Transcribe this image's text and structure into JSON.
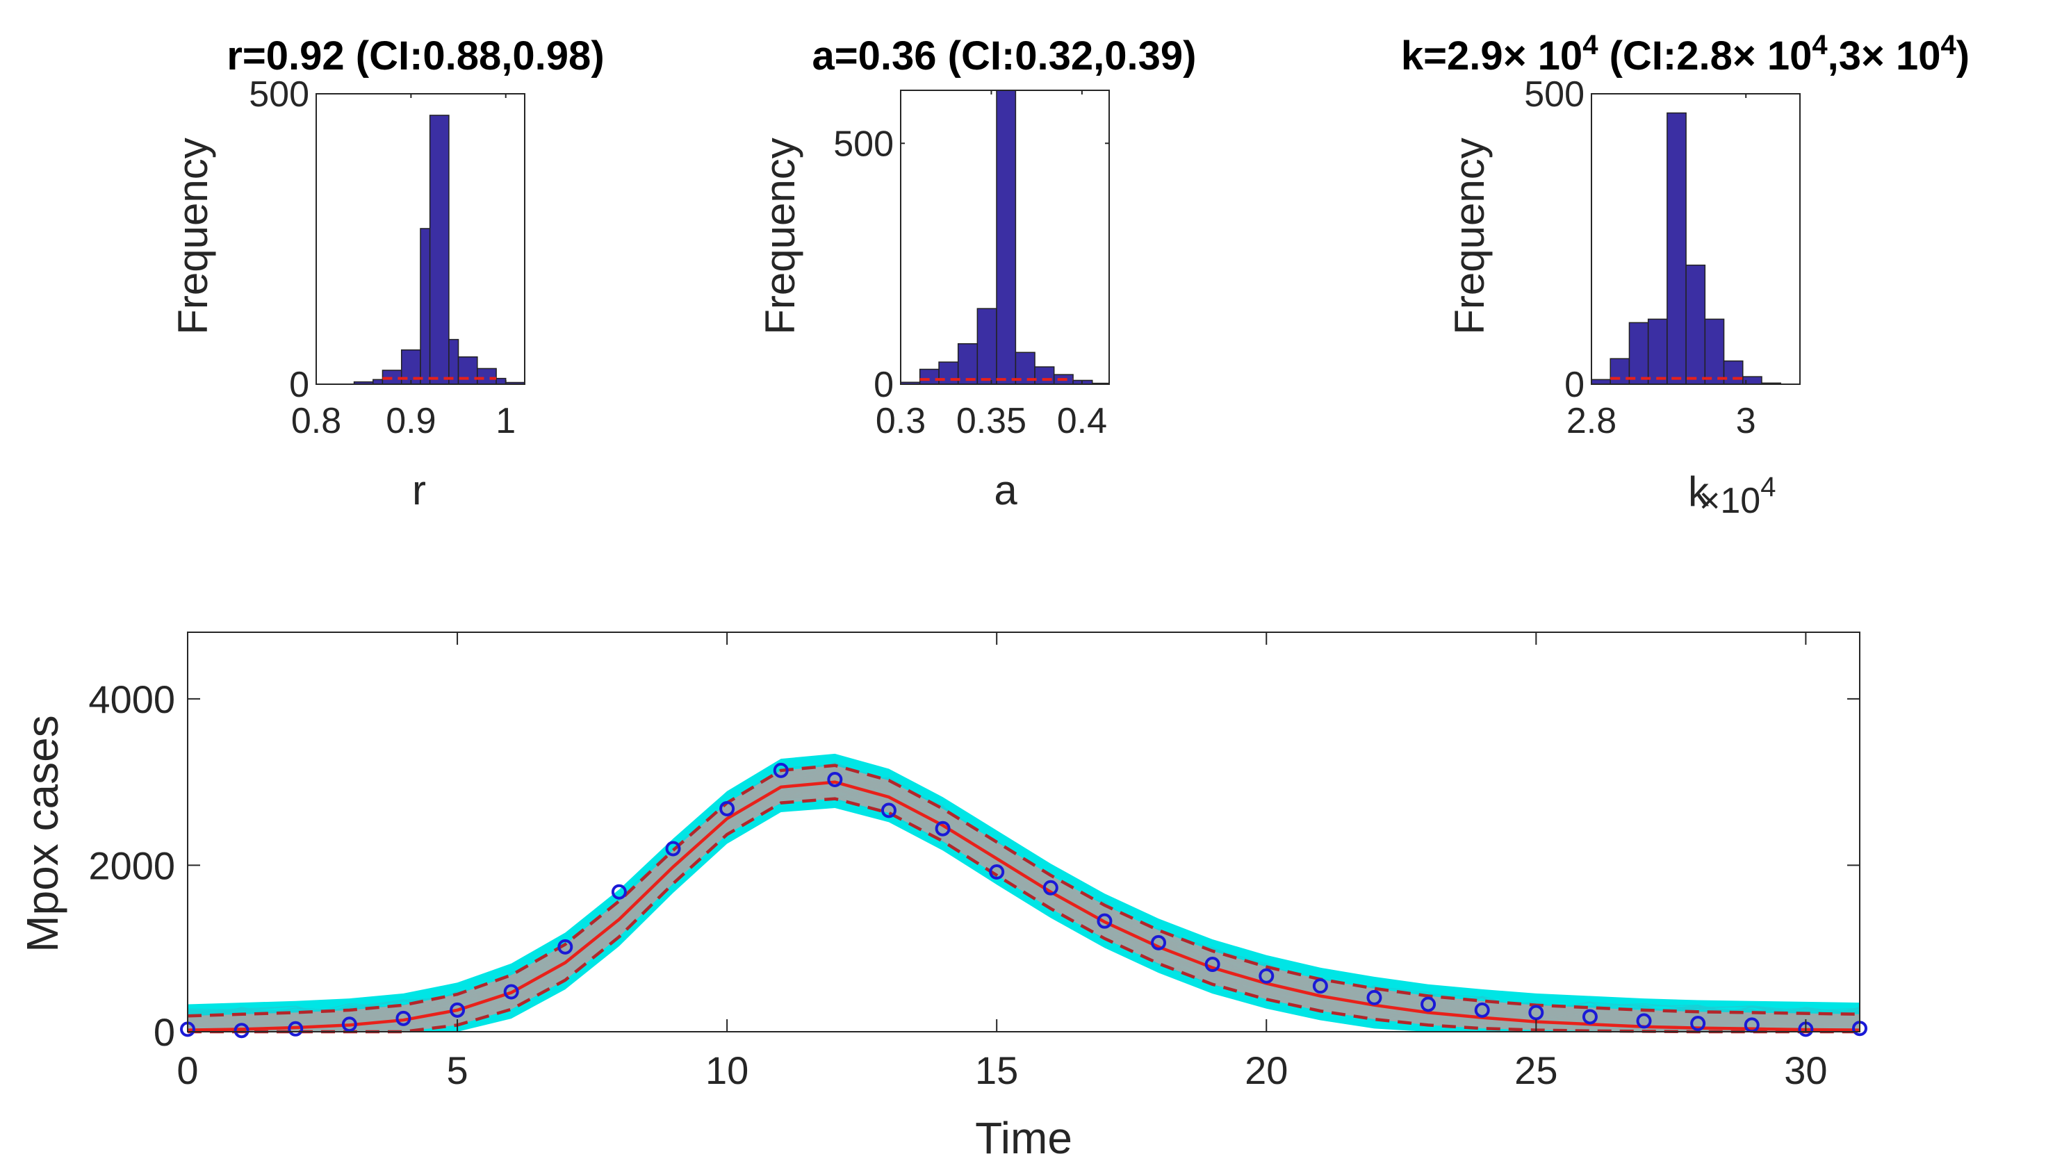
{
  "chart_data": [
    {
      "type": "bar",
      "id": "hist_r",
      "title_parts": [
        "r=0.92 (CI:0.88,0.98)"
      ],
      "xlabel": "r",
      "ylabel": "Frequency",
      "xlim": [
        0.8,
        1.02
      ],
      "ylim": [
        0,
        500
      ],
      "xticks": [
        "0.8",
        "0.9",
        "1"
      ],
      "xtick_values": [
        0.8,
        0.9,
        1.0
      ],
      "yticks": [
        "0",
        "500"
      ],
      "ytick_values": [
        0,
        500
      ],
      "bin_edges": [
        0.84,
        0.86,
        0.87,
        0.89,
        0.91,
        0.92,
        0.94,
        0.95,
        0.97,
        0.99,
        1.0,
        1.02
      ],
      "values": [
        4,
        8,
        24,
        59,
        268,
        463,
        77,
        47,
        27,
        10,
        3
      ],
      "mean_line_value": 10,
      "bar_color": "#3b2fa3",
      "mean_line_color": "#e8211a"
    },
    {
      "type": "bar",
      "id": "hist_a",
      "title_parts": [
        "a=0.36 (CI:0.32,0.39)"
      ],
      "xlabel": "a",
      "ylabel": "Frequency",
      "xlim": [
        0.3,
        0.415
      ],
      "ylim": [
        0,
        610
      ],
      "xticks": [
        "0.3",
        "0.35",
        "0.4"
      ],
      "xtick_values": [
        0.3,
        0.35,
        0.4
      ],
      "yticks": [
        "0",
        "500"
      ],
      "ytick_values": [
        0,
        500
      ],
      "bin_edges": [
        0.3,
        0.3106,
        0.3211,
        0.3317,
        0.3423,
        0.3529,
        0.3634,
        0.374,
        0.3846,
        0.3951,
        0.4057,
        0.415
      ],
      "values": [
        4,
        31,
        46,
        84,
        157,
        610,
        66,
        36,
        20,
        8,
        2
      ],
      "mean_line_value": 10,
      "bar_color": "#3b2fa3",
      "mean_line_color": "#e8211a"
    },
    {
      "type": "bar",
      "id": "hist_k",
      "title_parts": [
        "k=2.9",
        "×",
        " 10",
        "4",
        " (CI:2.8",
        "×",
        " 10",
        "4",
        ",3",
        "×",
        " 10",
        "4",
        ")"
      ],
      "xlabel": "k",
      "exponent_label": "×10",
      "exponent_sup": "4",
      "ylabel": "Frequency",
      "xlim": [
        2.8,
        3.07
      ],
      "ylim": [
        0,
        500
      ],
      "xticks": [
        "2.8",
        "3"
      ],
      "xtick_values": [
        2.8,
        3.0
      ],
      "yticks": [
        "0",
        "500"
      ],
      "ytick_values": [
        0,
        500
      ],
      "bin_edges": [
        2.8,
        2.8245,
        2.849,
        2.8735,
        2.898,
        2.9225,
        2.947,
        2.9715,
        2.996,
        3.0205,
        3.045,
        3.07
      ],
      "values": [
        8,
        44,
        106,
        112,
        467,
        205,
        112,
        40,
        13,
        2,
        0
      ],
      "mean_line_value": 10,
      "bar_color": "#3b2fa3",
      "mean_line_color": "#e8211a"
    },
    {
      "type": "line",
      "id": "fit_plot",
      "xlabel": "Time",
      "ylabel": "Mpox cases",
      "xlim": [
        0,
        31
      ],
      "ylim": [
        0,
        4800
      ],
      "xticks": [
        "0",
        "5",
        "10",
        "15",
        "20",
        "25",
        "30"
      ],
      "xtick_values": [
        0,
        5,
        10,
        15,
        20,
        25,
        30
      ],
      "yticks": [
        "0",
        "2000",
        "4000"
      ],
      "ytick_values": [
        0,
        2000,
        4000
      ],
      "x": [
        0,
        1,
        2,
        3,
        4,
        5,
        6,
        7,
        8,
        9,
        10,
        11,
        12,
        13,
        14,
        15,
        16,
        17,
        18,
        19,
        20,
        21,
        22,
        23,
        24,
        25,
        26,
        27,
        28,
        29,
        30,
        31
      ],
      "observed": [
        30,
        15,
        35,
        90,
        160,
        260,
        480,
        1020,
        1680,
        2200,
        2680,
        3140,
        3030,
        2660,
        2440,
        1920,
        1730,
        1330,
        1070,
        810,
        670,
        550,
        410,
        330,
        260,
        230,
        180,
        130,
        100,
        80,
        30,
        40
      ],
      "fit": [
        20,
        30,
        50,
        80,
        140,
        260,
        470,
        830,
        1350,
        1980,
        2560,
        2940,
        3000,
        2820,
        2480,
        2080,
        1680,
        1320,
        1020,
        770,
        580,
        430,
        320,
        230,
        170,
        120,
        90,
        60,
        45,
        35,
        25,
        20
      ],
      "upper": [
        190,
        210,
        230,
        260,
        320,
        450,
        680,
        1050,
        1570,
        2180,
        2750,
        3140,
        3200,
        3020,
        2680,
        2280,
        1880,
        1520,
        1220,
        970,
        780,
        630,
        520,
        430,
        370,
        320,
        290,
        260,
        240,
        230,
        220,
        210
      ],
      "lower": [
        0,
        0,
        0,
        0,
        0,
        80,
        270,
        620,
        1140,
        1780,
        2370,
        2750,
        2800,
        2630,
        2290,
        1880,
        1480,
        1120,
        820,
        570,
        390,
        250,
        150,
        80,
        40,
        20,
        10,
        5,
        0,
        0,
        0,
        0
      ],
      "ensemble_band": {
        "upper_offset": 280,
        "lower_offset": 280,
        "color": "#00e5e5"
      },
      "ci_fill_color": "#a6a6a6",
      "fit_color": "#e8211a",
      "ci_line_color": "#b3262a",
      "marker_color": "#1a1ad6"
    }
  ]
}
